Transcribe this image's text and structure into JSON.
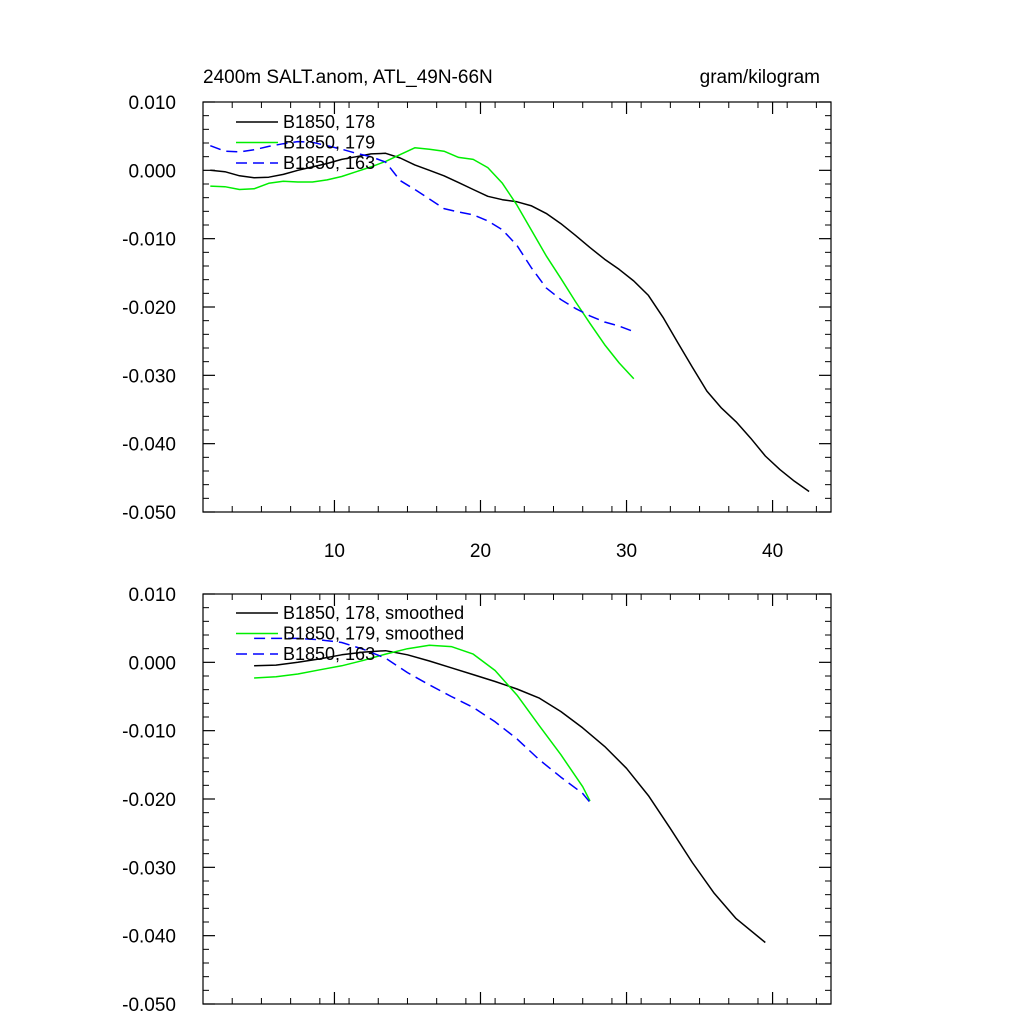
{
  "colors": {
    "s178": "#000000",
    "s179": "#00ee00",
    "s163": "#0000ff"
  },
  "chart_data": [
    {
      "type": "line",
      "title": "2400m SALT.anom, ATL_49N-66N",
      "units": "gram/kilogram",
      "xlim": [
        1,
        44
      ],
      "ylim": [
        -0.05,
        0.01
      ],
      "x_ticks": [
        10,
        20,
        30,
        40
      ],
      "x_tick_labels": [
        "10",
        "20",
        "30",
        "40"
      ],
      "y_ticks": [
        0.01,
        0.0,
        -0.01,
        -0.02,
        -0.03,
        -0.04,
        -0.05
      ],
      "y_tick_labels": [
        "0.010",
        "0.000",
        "-0.010",
        "-0.020",
        "-0.030",
        "-0.040",
        "-0.050"
      ],
      "series": [
        {
          "name": "B1850, 178",
          "style": "solid",
          "color_key": "s178",
          "x": [
            1.5,
            2.5,
            3.5,
            4.5,
            5.5,
            6.5,
            7.5,
            8.5,
            9.5,
            10.5,
            11.5,
            12.5,
            13.5,
            14.5,
            15.5,
            16.5,
            17.5,
            18.5,
            19.5,
            20.5,
            21.5,
            22.5,
            23.5,
            24.5,
            25.5,
            26.5,
            27.5,
            28.5,
            29.5,
            30.5,
            31.5,
            32.5,
            33.5,
            34.5,
            35.5,
            36.5,
            37.5,
            38.5,
            39.5,
            40.5,
            41.5,
            42.5
          ],
          "values": [
            0.0,
            -0.0002,
            -0.0008,
            -0.0011,
            -0.001,
            -0.0006,
            0.0,
            0.0005,
            0.001,
            0.0016,
            0.002,
            0.0024,
            0.0025,
            0.0018,
            0.0008,
            0.0,
            -0.0008,
            -0.0018,
            -0.0028,
            -0.0038,
            -0.0043,
            -0.0046,
            -0.0052,
            -0.0063,
            -0.0078,
            -0.0095,
            -0.0113,
            -0.013,
            -0.0145,
            -0.0162,
            -0.0183,
            -0.0215,
            -0.0252,
            -0.0288,
            -0.0323,
            -0.0348,
            -0.0368,
            -0.0392,
            -0.0418,
            -0.0438,
            -0.0455,
            -0.047
          ]
        },
        {
          "name": "B1850, 179",
          "style": "solid",
          "color_key": "s179",
          "x": [
            1.5,
            2.5,
            3.5,
            4.5,
            5.5,
            6.5,
            7.5,
            8.5,
            9.5,
            10.5,
            11.5,
            12.5,
            13.5,
            14.5,
            15.5,
            16.5,
            17.5,
            18.5,
            19.5,
            20.5,
            21.5,
            22.5,
            23.5,
            24.5,
            25.5,
            26.5,
            27.5,
            28.5,
            29.5,
            30.5
          ],
          "values": [
            -0.0023,
            -0.0024,
            -0.0028,
            -0.0027,
            -0.0019,
            -0.0016,
            -0.0017,
            -0.0017,
            -0.0014,
            -0.0009,
            -0.0002,
            0.0005,
            0.0013,
            0.0023,
            0.0033,
            0.0031,
            0.0028,
            0.0019,
            0.0016,
            0.0004,
            -0.0019,
            -0.0051,
            -0.0088,
            -0.0125,
            -0.0158,
            -0.0192,
            -0.0224,
            -0.0255,
            -0.0282,
            -0.0305
          ]
        },
        {
          "name": "B1850, 163",
          "style": "dashed",
          "color_key": "s163",
          "x": [
            1.5,
            2.5,
            3.5,
            4.5,
            5.5,
            6.5,
            7.5,
            8.5,
            9.5,
            10.5,
            11.5,
            12.5,
            13.5,
            14.5,
            15.5,
            16.5,
            17.5,
            18.5,
            19.5,
            20.5,
            21.5,
            22.5,
            23.5,
            24.5,
            25.5,
            26.5,
            27.5,
            28.5,
            29.5,
            30.5
          ],
          "values": [
            0.0036,
            0.0028,
            0.0027,
            0.003,
            0.0035,
            0.0039,
            0.0042,
            0.0041,
            0.0036,
            0.0031,
            0.0025,
            0.002,
            0.0012,
            -0.0015,
            -0.0028,
            -0.0042,
            -0.0056,
            -0.0061,
            -0.0065,
            -0.0074,
            -0.0087,
            -0.011,
            -0.0143,
            -0.0172,
            -0.0189,
            -0.0202,
            -0.0213,
            -0.0222,
            -0.0228,
            -0.0236
          ]
        }
      ]
    },
    {
      "type": "line",
      "title": "",
      "xlim": [
        1,
        44
      ],
      "ylim": [
        -0.05,
        0.01
      ],
      "x_ticks": [
        10,
        20,
        30,
        40
      ],
      "y_ticks": [
        0.01,
        0.0,
        -0.01,
        -0.02,
        -0.03,
        -0.04,
        -0.05
      ],
      "y_tick_labels": [
        "0.010",
        "0.000",
        "-0.010",
        "-0.020",
        "-0.030",
        "-0.040",
        "-0.050"
      ],
      "series": [
        {
          "name": "B1850, 178, smoothed",
          "style": "solid",
          "color_key": "s178",
          "x": [
            4.5,
            6,
            7.5,
            9,
            10.5,
            12,
            13.5,
            15,
            16.5,
            18,
            19.5,
            21,
            22.5,
            24,
            25.5,
            27,
            28.5,
            30,
            31.5,
            33,
            34.5,
            36,
            37.5,
            39.5
          ],
          "values": [
            -0.0005,
            -0.0004,
            0.0,
            0.0005,
            0.0011,
            0.0015,
            0.0017,
            0.0011,
            0.0002,
            -0.0008,
            -0.0018,
            -0.0028,
            -0.0039,
            -0.0052,
            -0.0072,
            -0.0096,
            -0.0123,
            -0.0155,
            -0.0195,
            -0.0243,
            -0.0293,
            -0.0338,
            -0.0375,
            -0.041
          ]
        },
        {
          "name": "B1850, 179, smoothed",
          "style": "solid",
          "color_key": "s179",
          "x": [
            4.5,
            6,
            7.5,
            9,
            10.5,
            12,
            13.5,
            15,
            16.5,
            18,
            19.5,
            21,
            22.5,
            24,
            25.5,
            27,
            27.5
          ],
          "values": [
            -0.0023,
            -0.0021,
            -0.0017,
            -0.0011,
            -0.0005,
            0.0003,
            0.0012,
            0.002,
            0.0025,
            0.0023,
            0.0012,
            -0.0012,
            -0.0048,
            -0.0092,
            -0.0135,
            -0.0182,
            -0.0203
          ]
        },
        {
          "name": "B1850, 163",
          "style": "dashed",
          "color_key": "s163",
          "x": [
            4.5,
            6,
            7.5,
            9,
            10.5,
            12,
            13.5,
            15,
            16.5,
            18,
            19.5,
            21,
            22.5,
            24,
            25.5,
            27,
            27.5
          ],
          "values": [
            0.0035,
            0.0035,
            0.0035,
            0.0033,
            0.0029,
            0.0019,
            0.0006,
            -0.0015,
            -0.0033,
            -0.005,
            -0.0066,
            -0.0087,
            -0.0112,
            -0.0142,
            -0.0168,
            -0.0192,
            -0.0205
          ]
        }
      ]
    }
  ]
}
